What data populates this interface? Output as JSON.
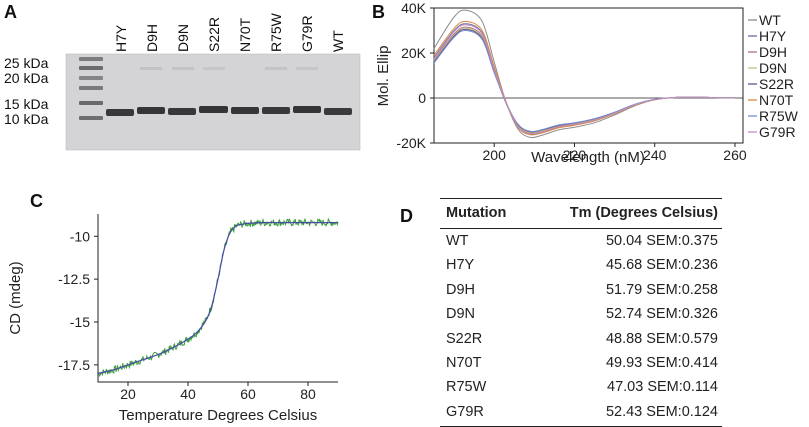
{
  "panels": {
    "a": "A",
    "b": "B",
    "c": "C",
    "d": "D"
  },
  "gel": {
    "ladder_labels": [
      "25 kDa",
      "20 kDa",
      "15 kDa",
      "10 kDa"
    ],
    "lanes": [
      "H7Y",
      "D9H",
      "D9N",
      "S22R",
      "N70T",
      "R75W",
      "G79R",
      "WT"
    ]
  },
  "chart_data": [
    {
      "type": "line",
      "panel": "B",
      "xlabel": "Wavelength (nM)",
      "ylabel": "Mol. Ellip",
      "xlim": [
        185,
        262
      ],
      "ylim": [
        -20000,
        40000
      ],
      "xticks": [
        "200",
        "220",
        "240",
        "260"
      ],
      "yticks": [
        "40K",
        "20K",
        "0",
        "-20K"
      ],
      "legend_position": "right",
      "x": [
        185,
        190,
        193,
        197,
        200,
        203,
        206,
        209,
        212,
        216,
        220,
        225,
        230,
        235,
        240,
        245,
        250,
        255,
        260
      ],
      "series": [
        {
          "name": "WT",
          "color": "#8c8c8c",
          "values": [
            22000,
            36000,
            39000,
            34000,
            16000,
            -2000,
            -14000,
            -17500,
            -16500,
            -14200,
            -13000,
            -11000,
            -7500,
            -3500,
            -800,
            200,
            300,
            200,
            100
          ]
        },
        {
          "name": "H7Y",
          "color": "#6d6d9a",
          "values": [
            18000,
            30000,
            33000,
            29000,
            13000,
            -2000,
            -13000,
            -16000,
            -15200,
            -13000,
            -11800,
            -10000,
            -6800,
            -3100,
            -700,
            200,
            300,
            200,
            100
          ]
        },
        {
          "name": "D9H",
          "color": "#b07090",
          "values": [
            17000,
            28500,
            31500,
            27500,
            12000,
            -2500,
            -12500,
            -15500,
            -14800,
            -12600,
            -11500,
            -9700,
            -6600,
            -3000,
            -700,
            200,
            300,
            200,
            100
          ]
        },
        {
          "name": "D9N",
          "color": "#c8c080",
          "values": [
            16500,
            28000,
            31000,
            27000,
            11800,
            -2400,
            -12300,
            -15300,
            -14500,
            -12400,
            -11300,
            -9500,
            -6500,
            -2900,
            -650,
            200,
            300,
            200,
            100
          ]
        },
        {
          "name": "S22R",
          "color": "#5a5a8a",
          "values": [
            16000,
            27500,
            30500,
            26500,
            11500,
            -2300,
            -12000,
            -15000,
            -14200,
            -12200,
            -11100,
            -9300,
            -6400,
            -2900,
            -650,
            200,
            300,
            200,
            100
          ]
        },
        {
          "name": "N70T",
          "color": "#e08840",
          "values": [
            19000,
            31000,
            34000,
            30000,
            14000,
            -1800,
            -13200,
            -16300,
            -15500,
            -13300,
            -12100,
            -10200,
            -7000,
            -3200,
            -750,
            200,
            300,
            200,
            100
          ]
        },
        {
          "name": "R75W",
          "color": "#7a8ad0",
          "values": [
            15500,
            27000,
            30000,
            26000,
            11200,
            -2200,
            -11800,
            -14800,
            -14000,
            -12000,
            -11000,
            -9200,
            -6300,
            -2800,
            -600,
            200,
            300,
            200,
            100
          ]
        },
        {
          "name": "G79R",
          "color": "#c090c0",
          "values": [
            17500,
            29500,
            32500,
            28500,
            12500,
            -2000,
            -12800,
            -15800,
            -15000,
            -12800,
            -11700,
            -9900,
            -6700,
            -3000,
            -700,
            200,
            300,
            200,
            100
          ]
        }
      ]
    },
    {
      "type": "line",
      "panel": "C",
      "xlabel": "Temperature Degrees Celsius",
      "ylabel": "CD (mdeg)",
      "xlim": [
        10,
        90
      ],
      "ylim": [
        -18.5,
        -8.7
      ],
      "xticks": [
        "20",
        "40",
        "60",
        "80"
      ],
      "yticks": [
        "-10",
        "-12.5",
        "-15",
        "-17.5"
      ],
      "x": [
        10,
        15,
        20,
        25,
        30,
        35,
        40,
        43,
        46,
        48,
        50,
        52,
        54,
        56,
        58,
        60,
        65,
        70,
        75,
        80,
        85,
        90
      ],
      "series": [
        {
          "name": "data",
          "color": "#3aa03a",
          "values": [
            -18.0,
            -17.8,
            -17.5,
            -17.2,
            -16.9,
            -16.5,
            -16.0,
            -15.6,
            -14.9,
            -14.0,
            -12.5,
            -10.8,
            -9.8,
            -9.4,
            -9.3,
            -9.25,
            -9.2,
            -9.2,
            -9.2,
            -9.2,
            -9.2,
            -9.2
          ]
        },
        {
          "name": "fit",
          "color": "#4a4aa8",
          "values": [
            -18.0,
            -17.8,
            -17.5,
            -17.2,
            -16.9,
            -16.5,
            -16.0,
            -15.6,
            -14.9,
            -14.0,
            -12.5,
            -10.8,
            -9.8,
            -9.4,
            -9.3,
            -9.25,
            -9.2,
            -9.2,
            -9.2,
            -9.2,
            -9.2,
            -9.2
          ]
        }
      ]
    }
  ],
  "table": {
    "headers": [
      "Mutation",
      "Tm (Degrees Celsius)"
    ],
    "rows": [
      [
        "WT",
        "50.04 SEM:0.375"
      ],
      [
        "H7Y",
        "45.68 SEM:0.236"
      ],
      [
        "D9H",
        "51.79 SEM:0.258"
      ],
      [
        "D9N",
        "52.74 SEM:0.326"
      ],
      [
        "S22R",
        "48.88 SEM:0.579"
      ],
      [
        "N70T",
        "49.93 SEM:0.414"
      ],
      [
        "R75W",
        "47.03 SEM:0.114"
      ],
      [
        "G79R",
        "52.43 SEM:0.124"
      ]
    ]
  }
}
